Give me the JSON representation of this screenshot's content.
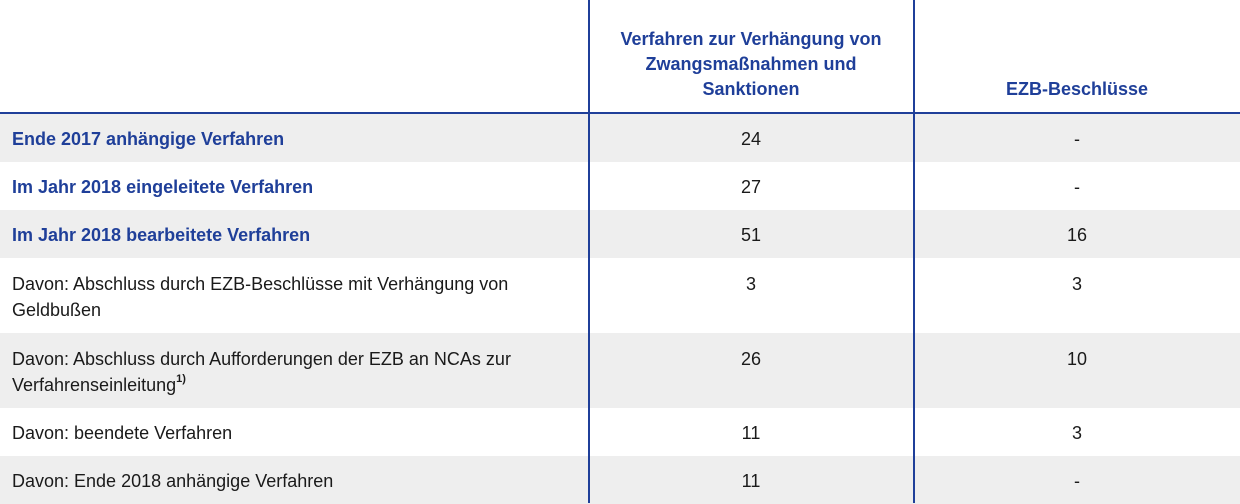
{
  "header": {
    "col1": "",
    "col2": "Verfahren zur Verhängung von Zwangsmaßnahmen und Sanktionen",
    "col3": "EZB-Beschlüsse"
  },
  "rows": [
    {
      "label": "Ende 2017 anhängige Verfahren",
      "v1": "24",
      "v2": "-"
    },
    {
      "label": "Im Jahr 2018 eingeleitete Verfahren",
      "v1": "27",
      "v2": "-"
    },
    {
      "label": "Im Jahr 2018 bearbeitete Verfahren",
      "v1": "51",
      "v2": "16"
    },
    {
      "label": "Davon: Abschluss durch EZB-Beschlüsse mit Verhängung von Geldbußen",
      "v1": "3",
      "v2": "3"
    },
    {
      "label": "Davon: Abschluss durch Aufforderungen der EZB an NCAs zur Verfahrenseinleitung",
      "footnote": "1)",
      "v1": "26",
      "v2": "10"
    },
    {
      "label": "Davon: beendete Verfahren",
      "v1": "11",
      "v2": "3"
    },
    {
      "label": "Davon: Ende 2018 anhängige Verfahren",
      "v1": "11",
      "v2": "-"
    }
  ],
  "colors": {
    "accent": "#1f3f99",
    "shade": "#eeeeee"
  }
}
